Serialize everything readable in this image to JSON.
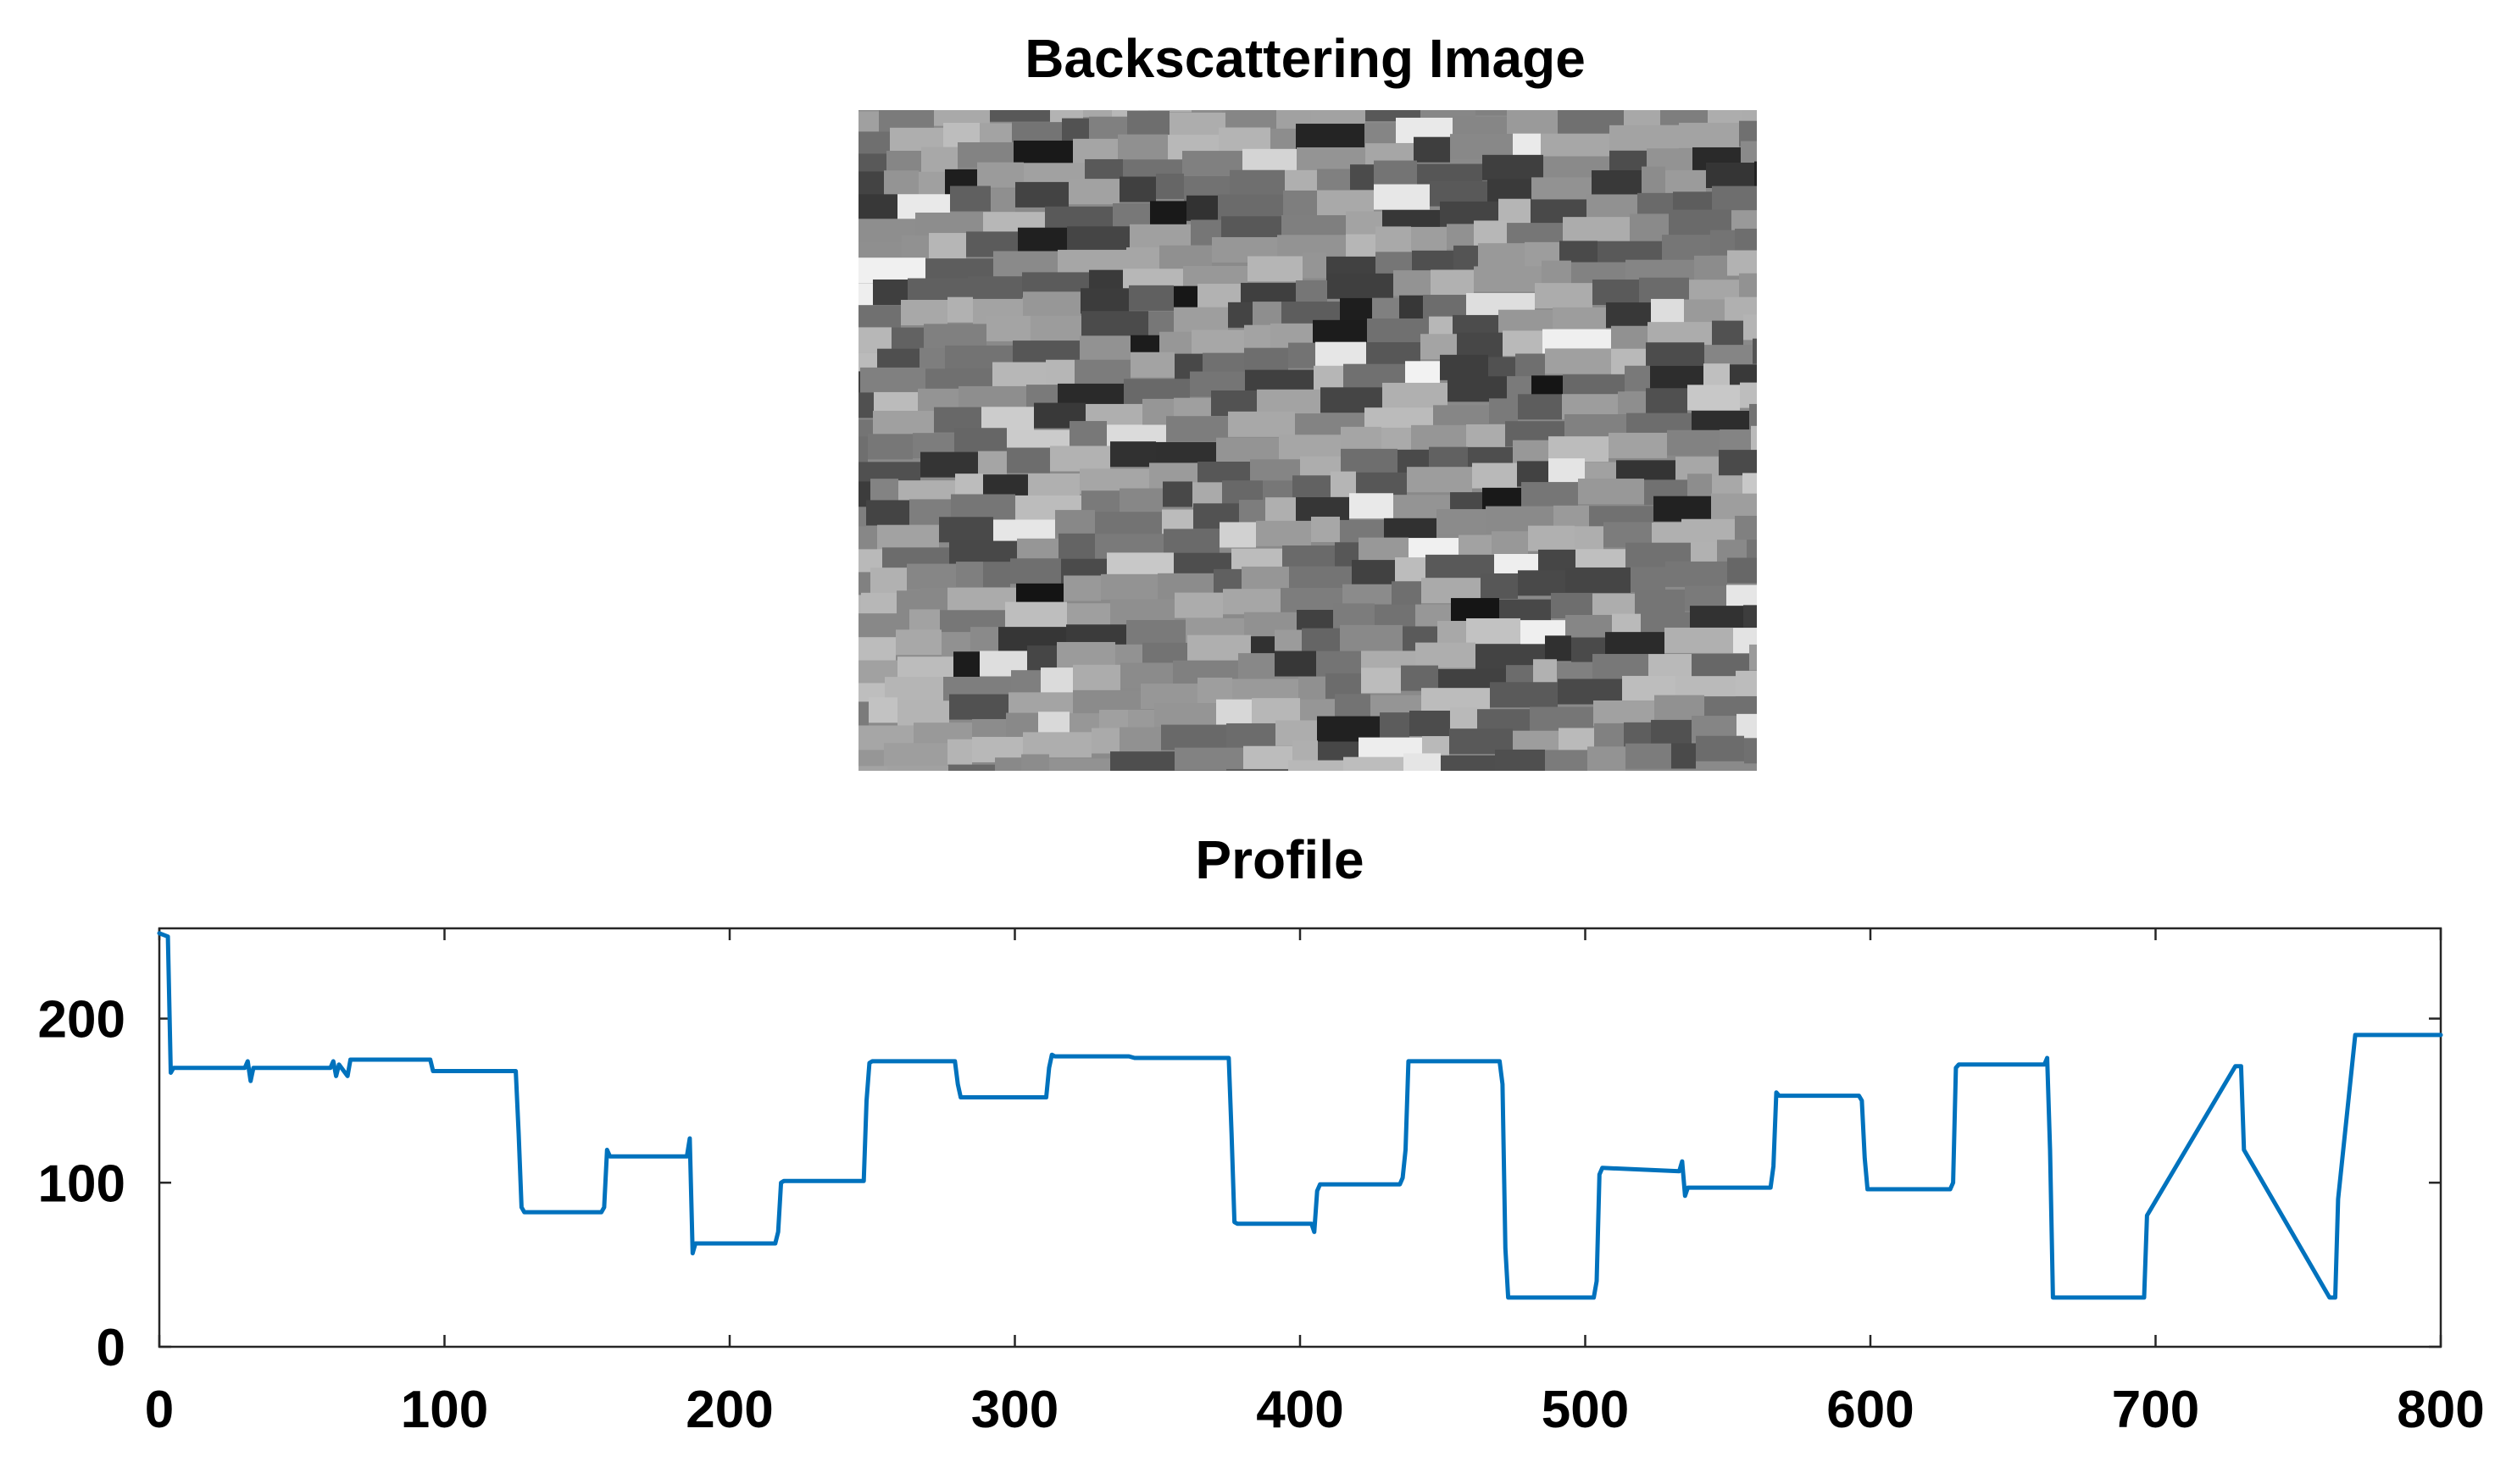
{
  "image_panel": {
    "title": "Backscattering Image"
  },
  "chart_data": {
    "type": "line",
    "title": "Profile",
    "xlabel": "",
    "ylabel": "",
    "xlim": [
      0,
      800
    ],
    "ylim": [
      0,
      255
    ],
    "xticks": [
      0,
      100,
      200,
      300,
      400,
      500,
      600,
      700,
      800
    ],
    "yticks": [
      0,
      100,
      200
    ],
    "grid": false,
    "series": [
      {
        "color": "#0072BD",
        "x": [
          0,
          3,
          4,
          5,
          30,
          31,
          32,
          33,
          60,
          61,
          62,
          63,
          66,
          67,
          95,
          96,
          125,
          126,
          127,
          128,
          155,
          156,
          157,
          158,
          185,
          186,
          187,
          188,
          216,
          217,
          218,
          219,
          247,
          248,
          249,
          250,
          279,
          280,
          281,
          282,
          311,
          312,
          313,
          314,
          340,
          342,
          375,
          376,
          377,
          378,
          404,
          405,
          406,
          407,
          435,
          436,
          437,
          438,
          470,
          471,
          472,
          473,
          503,
          504,
          505,
          506,
          533,
          534,
          535,
          536,
          565,
          566,
          567,
          568,
          596,
          597,
          598,
          599,
          628,
          629,
          630,
          631,
          661,
          662,
          663,
          664,
          694,
          695,
          696,
          697,
          728,
          729,
          730,
          731,
          761,
          762,
          763,
          764,
          770,
          800
        ],
        "y": [
          252,
          250,
          167,
          170,
          170,
          174,
          162,
          170,
          170,
          174,
          165,
          172,
          165,
          175,
          175,
          168,
          168,
          130,
          85,
          82,
          82,
          85,
          120,
          116,
          116,
          127,
          57,
          63,
          63,
          70,
          100,
          101,
          101,
          150,
          173,
          174,
          174,
          160,
          152,
          152,
          152,
          170,
          178,
          177,
          177,
          176,
          176,
          130,
          76,
          75,
          75,
          70,
          95,
          99,
          99,
          103,
          120,
          174,
          174,
          160,
          60,
          30,
          30,
          40,
          105,
          109,
          107,
          113,
          92,
          97,
          97,
          110,
          155,
          153,
          153,
          150,
          115,
          96,
          96,
          100,
          170,
          172,
          172,
          176,
          120,
          30,
          30,
          30,
          30,
          80,
          171,
          171,
          171,
          120,
          30,
          30,
          30,
          90,
          190,
          190
        ]
      }
    ]
  }
}
